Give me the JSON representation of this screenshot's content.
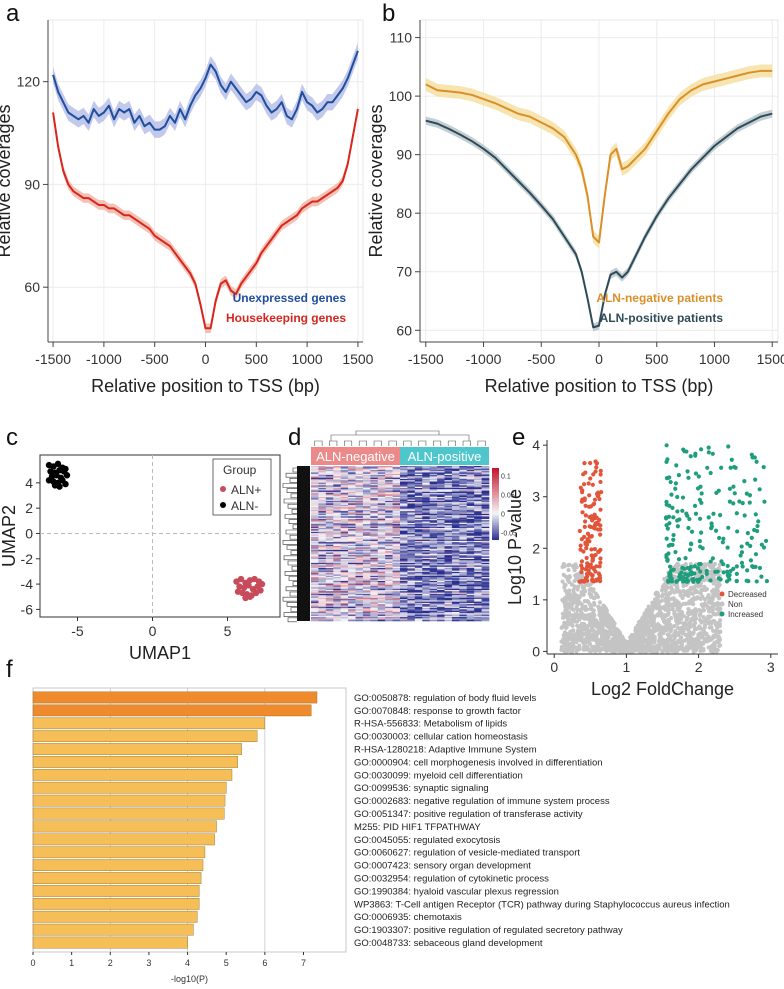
{
  "panels": {
    "a": "a",
    "b": "b",
    "c": "c",
    "d": "d",
    "e": "e",
    "f": "f"
  },
  "colors": {
    "unexpressed": "#1f4e9e",
    "unexpressed_band": "#b7bfe6",
    "housekeeping": "#d7261e",
    "housekeeping_band": "#f2b6a8",
    "aln_negative": "#d9902b",
    "aln_negative_band": "#f6e0a3",
    "aln_positive": "#2f4b57",
    "aln_positive_band": "#b9c7cc",
    "aln_plus": "#c74b5a",
    "aln_minus": "#000000",
    "heat_low": "#2b2f8f",
    "heat_mid": "#f4f4f8",
    "heat_high": "#c3122a",
    "heat_group_neg": "#ec8a8a",
    "heat_group_pos": "#4ec6cc",
    "decreased": "#e2553a",
    "non": "#c4c4c4",
    "increased": "#1f9e7e",
    "bar_dark": "#ef8b2c",
    "bar_light": "#f6be56"
  },
  "chart_data": [
    {
      "id": "a",
      "type": "line",
      "xlabel": "Relative position to TSS (bp)",
      "ylabel": "Relative coverages",
      "xlim": [
        -1550,
        1550
      ],
      "ylim": [
        44,
        138
      ],
      "xticks": [
        -1500,
        -1000,
        -500,
        0,
        500,
        1000,
        1500
      ],
      "yticks": [
        60,
        90,
        120
      ],
      "series": [
        {
          "name": "Unexpressed genes",
          "x": [
            -1500,
            -1450,
            -1400,
            -1350,
            -1300,
            -1250,
            -1200,
            -1150,
            -1100,
            -1050,
            -1000,
            -950,
            -900,
            -850,
            -800,
            -750,
            -700,
            -650,
            -600,
            -550,
            -500,
            -450,
            -400,
            -350,
            -300,
            -250,
            -200,
            -150,
            -100,
            -50,
            0,
            50,
            100,
            150,
            200,
            250,
            300,
            350,
            400,
            450,
            500,
            550,
            600,
            650,
            700,
            750,
            800,
            850,
            900,
            950,
            1000,
            1050,
            1100,
            1150,
            1200,
            1250,
            1300,
            1350,
            1400,
            1450,
            1500
          ],
          "y": [
            122,
            117,
            114,
            111,
            110,
            109,
            110,
            108,
            112,
            110,
            111,
            113,
            109,
            112,
            111,
            112,
            108,
            110,
            107,
            108,
            106,
            106,
            107,
            110,
            108,
            112,
            109,
            113,
            116,
            118,
            121,
            125,
            123,
            119,
            117,
            120,
            118,
            116,
            114,
            115,
            117,
            116,
            113,
            111,
            112,
            114,
            110,
            109,
            112,
            117,
            114,
            113,
            111,
            112,
            114,
            114,
            116,
            118,
            121,
            125,
            129
          ]
        },
        {
          "name": "Housekeeping genes",
          "x": [
            -1500,
            -1450,
            -1400,
            -1350,
            -1300,
            -1250,
            -1200,
            -1150,
            -1100,
            -1050,
            -1000,
            -950,
            -900,
            -850,
            -800,
            -750,
            -700,
            -650,
            -600,
            -550,
            -500,
            -450,
            -400,
            -350,
            -300,
            -250,
            -200,
            -150,
            -100,
            -50,
            0,
            50,
            100,
            150,
            200,
            250,
            300,
            350,
            400,
            450,
            500,
            550,
            600,
            650,
            700,
            750,
            800,
            850,
            900,
            950,
            1000,
            1050,
            1100,
            1150,
            1200,
            1250,
            1300,
            1350,
            1400,
            1450,
            1500
          ],
          "y": [
            111,
            101,
            94,
            90,
            88,
            87,
            86,
            86,
            85,
            84,
            84,
            83,
            83,
            82,
            81,
            81,
            80,
            79,
            78,
            77,
            75,
            74,
            73,
            72,
            70,
            68,
            66,
            64,
            61,
            55,
            48,
            48,
            56,
            61,
            62,
            59,
            58,
            61,
            63,
            65,
            67,
            70,
            72,
            74,
            76,
            78,
            79,
            80,
            81,
            83,
            84,
            85,
            85,
            86,
            87,
            88,
            89,
            91,
            96,
            104,
            112
          ]
        }
      ],
      "legend": [
        "Unexpressed genes",
        "Housekeeping genes"
      ]
    },
    {
      "id": "b",
      "type": "line",
      "xlabel": "Relative position to TSS (bp)",
      "ylabel": "Relative coverages",
      "xlim": [
        -1550,
        1550
      ],
      "ylim": [
        58,
        113
      ],
      "xticks": [
        -1500,
        -1000,
        -500,
        0,
        500,
        1000,
        1500
      ],
      "yticks": [
        60,
        70,
        80,
        90,
        100,
        110
      ],
      "series": [
        {
          "name": "ALN-negative patients",
          "x": [
            -1500,
            -1400,
            -1300,
            -1200,
            -1100,
            -1000,
            -900,
            -800,
            -700,
            -600,
            -500,
            -400,
            -300,
            -200,
            -150,
            -100,
            -50,
            0,
            50,
            100,
            150,
            200,
            250,
            300,
            400,
            500,
            600,
            700,
            800,
            900,
            1000,
            1100,
            1200,
            1300,
            1400,
            1500
          ],
          "y": [
            102,
            101,
            100.8,
            100.6,
            100.2,
            99.5,
            98.8,
            97.9,
            97,
            96.5,
            95.5,
            94.5,
            93,
            90,
            87.5,
            83,
            76,
            75,
            83,
            90,
            91,
            87.5,
            88,
            89,
            91,
            94,
            97,
            99.5,
            101,
            102,
            102.5,
            103,
            103.5,
            104,
            104.3,
            104.3
          ]
        },
        {
          "name": "ALN-positive patients",
          "x": [
            -1500,
            -1400,
            -1300,
            -1200,
            -1100,
            -1000,
            -900,
            -800,
            -700,
            -600,
            -500,
            -400,
            -300,
            -200,
            -150,
            -100,
            -50,
            0,
            50,
            100,
            150,
            200,
            250,
            300,
            400,
            500,
            600,
            700,
            800,
            900,
            1000,
            1100,
            1200,
            1300,
            1400,
            1500
          ],
          "y": [
            95.8,
            95.3,
            94.4,
            93.4,
            92.3,
            91,
            89.5,
            87.5,
            85.5,
            83.5,
            81.3,
            79,
            76,
            73,
            70,
            65.5,
            60.5,
            60.8,
            66,
            69.5,
            70,
            69,
            70,
            72,
            76,
            79.5,
            82.5,
            85,
            87.5,
            89.5,
            91.5,
            93,
            94.5,
            95.5,
            96.5,
            97
          ]
        }
      ],
      "legend": [
        "ALN-negative patients",
        "ALN-positive patients"
      ]
    },
    {
      "id": "c",
      "type": "scatter",
      "xlabel": "UMAP1",
      "ylabel": "UMAP2",
      "xlim": [
        -7.5,
        8.5
      ],
      "ylim": [
        -6.6,
        6.2
      ],
      "xticks": [
        -5,
        0,
        5
      ],
      "yticks": [
        -6,
        -4,
        -2,
        0,
        2,
        4
      ],
      "legend_title": "Group",
      "series": [
        {
          "name": "ALN+",
          "x": [
            5.6,
            5.9,
            6.2,
            6.5,
            6.8,
            7.1,
            7.3,
            5.8,
            6.1,
            6.4,
            6.7,
            7.0,
            7.2,
            5.7,
            6.0,
            6.3,
            6.6,
            6.9,
            6.2,
            6.5
          ],
          "y": [
            -3.8,
            -3.6,
            -3.9,
            -3.7,
            -3.6,
            -3.8,
            -4.0,
            -4.2,
            -4.3,
            -4.1,
            -4.4,
            -4.2,
            -4.5,
            -4.6,
            -4.7,
            -4.8,
            -4.9,
            -4.7,
            -5.1,
            -5.0
          ]
        },
        {
          "name": "ALN-",
          "x": [
            -6.9,
            -6.6,
            -6.3,
            -6.0,
            -5.8,
            -6.8,
            -6.5,
            -6.2,
            -5.9,
            -6.7,
            -6.4,
            -6.1,
            -5.7,
            -6.9,
            -6.6,
            -6.3,
            -6.0,
            -6.5,
            -6.2,
            -5.8
          ],
          "y": [
            5.4,
            5.3,
            5.5,
            5.2,
            5.1,
            4.9,
            4.8,
            5.0,
            4.9,
            4.5,
            4.6,
            4.4,
            4.6,
            4.2,
            4.1,
            4.0,
            4.2,
            3.8,
            3.7,
            3.9
          ]
        }
      ]
    },
    {
      "id": "d",
      "type": "heatmap",
      "groups": [
        "ALN-negative",
        "ALN-positive"
      ],
      "colorbar_ticks": [
        "0.1",
        "0.05",
        "0",
        "-0.05"
      ],
      "colorbar_range": [
        -0.07,
        0.12
      ],
      "n_rows": 120,
      "n_cols_per_group": 12,
      "row_profile_negative": [
        0.01,
        -0.02,
        0.03,
        -0.01,
        0.0,
        -0.03,
        0.02,
        -0.02,
        0.01,
        -0.04
      ],
      "row_profile_positive": [
        -0.05,
        -0.03,
        -0.06,
        -0.04,
        -0.02,
        -0.05,
        -0.03,
        -0.06,
        -0.01,
        -0.04
      ]
    },
    {
      "id": "e",
      "type": "scatter",
      "xlabel": "Log2 FoldChange",
      "ylabel": "Log10 P-value",
      "xlim": [
        -0.1,
        3.1
      ],
      "ylim": [
        -0.05,
        4.1
      ],
      "xticks": [
        0,
        1,
        2,
        3
      ],
      "yticks": [
        0,
        1,
        2,
        3,
        4
      ],
      "legend": [
        "Decreased",
        "Non",
        "Increased"
      ],
      "density": {
        "non_points": 1800,
        "decreased_points": 140,
        "increased_points": 230
      },
      "decreased_x_range": [
        0.35,
        0.65
      ],
      "decreased_y_range": [
        1.35,
        3.7
      ],
      "increased_x_range": [
        1.55,
        2.95
      ],
      "increased_y_range": [
        1.35,
        4.0
      ],
      "threshold_p": 1.35
    },
    {
      "id": "f",
      "type": "bar",
      "orientation": "horizontal",
      "xlabel": "-log10(P)",
      "xlim": [
        0,
        8.1
      ],
      "xticks": [
        0,
        1,
        2,
        3,
        4,
        5,
        6,
        7
      ],
      "categories": [
        "GO:0050878: regulation of body fluid levels",
        "GO:0070848: response to growth factor",
        "R-HSA-556833: Metabolism of lipids",
        "GO:0030003: cellular cation homeostasis",
        "R-HSA-1280218: Adaptive Immune System",
        "GO:0000904: cell morphogenesis involved in differentiation",
        "GO:0030099: myeloid cell differentiation",
        "GO:0099536: synaptic signaling",
        "GO:0002683: negative regulation of immune system process",
        "GO:0051347: positive regulation of transferase activity",
        "M255: PID HIF1 TFPATHWAY",
        "GO:0045055: regulated exocytosis",
        "GO:0060627: regulation of vesicle-mediated transport",
        "GO:0007423: sensory organ development",
        "GO:0032954: regulation of cytokinetic process",
        "GO:1990384: hyaloid vascular plexus regression",
        "WP3863: T-Cell antigen Receptor (TCR) pathway during Staphylococcus aureus infection",
        "GO:0006935: chemotaxis",
        "GO:1903307: positive regulation of regulated secretory pathway",
        "GO:0048733: sebaceous gland development"
      ],
      "values": [
        7.35,
        7.2,
        6.0,
        5.8,
        5.4,
        5.3,
        5.15,
        5.0,
        4.97,
        4.95,
        4.75,
        4.7,
        4.45,
        4.4,
        4.35,
        4.3,
        4.3,
        4.25,
        4.15,
        4.0
      ]
    }
  ]
}
